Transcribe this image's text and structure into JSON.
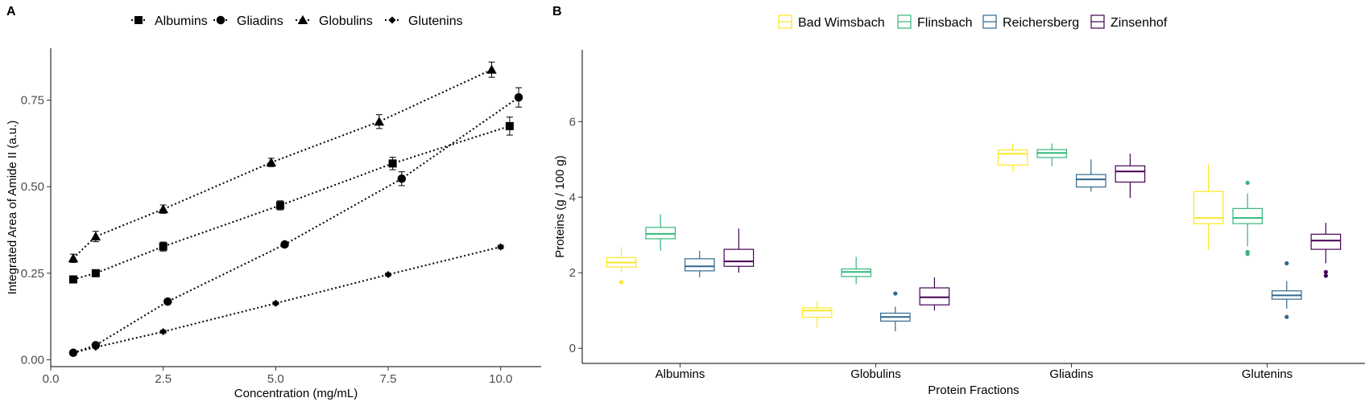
{
  "chart_data": [
    {
      "panel": "A",
      "type": "scatter",
      "xlabel": "Concentration (mg/mL)",
      "ylabel": "Integrated Area of Amide II (a.u.)",
      "xlim": [
        0,
        10.9
      ],
      "ylim": [
        -0.02,
        0.9
      ],
      "xticks": [
        0,
        2.5,
        5,
        7.5,
        10
      ],
      "xtick_labels": [
        "0.0",
        "2.5",
        "5.0",
        "7.5",
        "10.0"
      ],
      "yticks": [
        0,
        0.25,
        0.5,
        0.75
      ],
      "ytick_labels": [
        "0.00",
        "0.25",
        "0.50",
        "0.75"
      ],
      "legend_position": "top",
      "grid": false,
      "series": [
        {
          "name": "Albumins",
          "marker": "square",
          "x": [
            0.5,
            1.0,
            2.5,
            5.1,
            7.6,
            10.2
          ],
          "y": [
            0.232,
            0.25,
            0.327,
            0.446,
            0.567,
            0.675
          ],
          "err": [
            0.01,
            0.008,
            0.013,
            0.013,
            0.018,
            0.026
          ]
        },
        {
          "name": "Gliadins",
          "marker": "circle",
          "x": [
            0.5,
            1.0,
            2.6,
            5.2,
            7.8,
            10.4
          ],
          "y": [
            0.02,
            0.042,
            0.168,
            0.333,
            0.523,
            0.758
          ],
          "err": [
            0.005,
            0.006,
            0.007,
            0.006,
            0.02,
            0.028
          ]
        },
        {
          "name": "Globulins",
          "marker": "triangle",
          "x": [
            0.5,
            1.0,
            2.5,
            4.9,
            7.3,
            9.8
          ],
          "y": [
            0.293,
            0.356,
            0.435,
            0.57,
            0.688,
            0.838
          ],
          "err": [
            0.012,
            0.015,
            0.012,
            0.012,
            0.02,
            0.022
          ]
        },
        {
          "name": "Glutenins",
          "marker": "diamond",
          "x": [
            0.5,
            1.0,
            2.5,
            5.0,
            7.5,
            10.0
          ],
          "y": [
            0.02,
            0.036,
            0.081,
            0.163,
            0.246,
            0.326
          ],
          "err": [
            0.003,
            0.003,
            0.004,
            0.004,
            0.004,
            0.005
          ]
        }
      ]
    },
    {
      "panel": "B",
      "type": "box",
      "xlabel": "Protein Fractions",
      "ylabel": "Proteins (g / 100 g)",
      "ylim": [
        -0.4,
        7.9
      ],
      "yticks": [
        0,
        2,
        4,
        6
      ],
      "ytick_labels": [
        "0",
        "2",
        "4",
        "6"
      ],
      "legend_position": "top",
      "grid": false,
      "categories": [
        "Albumins",
        "Globulins",
        "Gliadins",
        "Glutenins"
      ],
      "series": [
        {
          "name": "Bad Wimsbach",
          "color": "#fde725",
          "boxes": [
            {
              "min": 2.0,
              "q1": 2.15,
              "median": 2.27,
              "q3": 2.4,
              "max": 2.68,
              "outliers": [
                1.75
              ]
            },
            {
              "min": 0.55,
              "q1": 0.82,
              "median": 1.0,
              "q3": 1.07,
              "max": 1.25,
              "outliers": []
            },
            {
              "min": 4.68,
              "q1": 4.85,
              "median": 5.15,
              "q3": 5.25,
              "max": 5.42,
              "outliers": []
            },
            {
              "min": 2.6,
              "q1": 3.3,
              "median": 3.45,
              "q3": 4.15,
              "max": 4.88,
              "outliers": []
            }
          ]
        },
        {
          "name": "Flinsbach",
          "color": "#35b779",
          "boxes": [
            {
              "min": 2.58,
              "q1": 2.9,
              "median": 3.03,
              "q3": 3.2,
              "max": 3.55,
              "outliers": []
            },
            {
              "min": 1.7,
              "q1": 1.9,
              "median": 2.02,
              "q3": 2.1,
              "max": 2.42,
              "outliers": []
            },
            {
              "min": 4.82,
              "q1": 5.05,
              "median": 5.17,
              "q3": 5.26,
              "max": 5.42,
              "outliers": []
            },
            {
              "min": 2.7,
              "q1": 3.3,
              "median": 3.45,
              "q3": 3.7,
              "max": 4.1,
              "outliers": [
                4.38,
                2.55,
                2.5
              ]
            }
          ]
        },
        {
          "name": "Reichersberg",
          "color": "#31688e",
          "boxes": [
            {
              "min": 1.88,
              "q1": 2.05,
              "median": 2.17,
              "q3": 2.37,
              "max": 2.58,
              "outliers": []
            },
            {
              "min": 0.45,
              "q1": 0.72,
              "median": 0.83,
              "q3": 0.93,
              "max": 1.1,
              "outliers": [
                1.45
              ]
            },
            {
              "min": 4.15,
              "q1": 4.27,
              "median": 4.47,
              "q3": 4.6,
              "max": 5.0,
              "outliers": []
            },
            {
              "min": 1.05,
              "q1": 1.3,
              "median": 1.4,
              "q3": 1.52,
              "max": 1.78,
              "outliers": [
                2.25,
                0.83
              ]
            }
          ]
        },
        {
          "name": "Zinsenhof",
          "color": "#440154",
          "boxes": [
            {
              "min": 2.0,
              "q1": 2.17,
              "median": 2.3,
              "q3": 2.62,
              "max": 3.17,
              "outliers": []
            },
            {
              "min": 1.0,
              "q1": 1.15,
              "median": 1.35,
              "q3": 1.6,
              "max": 1.88,
              "outliers": []
            },
            {
              "min": 3.98,
              "q1": 4.4,
              "median": 4.68,
              "q3": 4.83,
              "max": 5.15,
              "outliers": []
            },
            {
              "min": 2.25,
              "q1": 2.62,
              "median": 2.85,
              "q3": 3.02,
              "max": 3.32,
              "outliers": [
                2.02,
                1.92
              ]
            }
          ]
        }
      ]
    }
  ],
  "panel_labels": {
    "a": "A",
    "b": "B"
  }
}
